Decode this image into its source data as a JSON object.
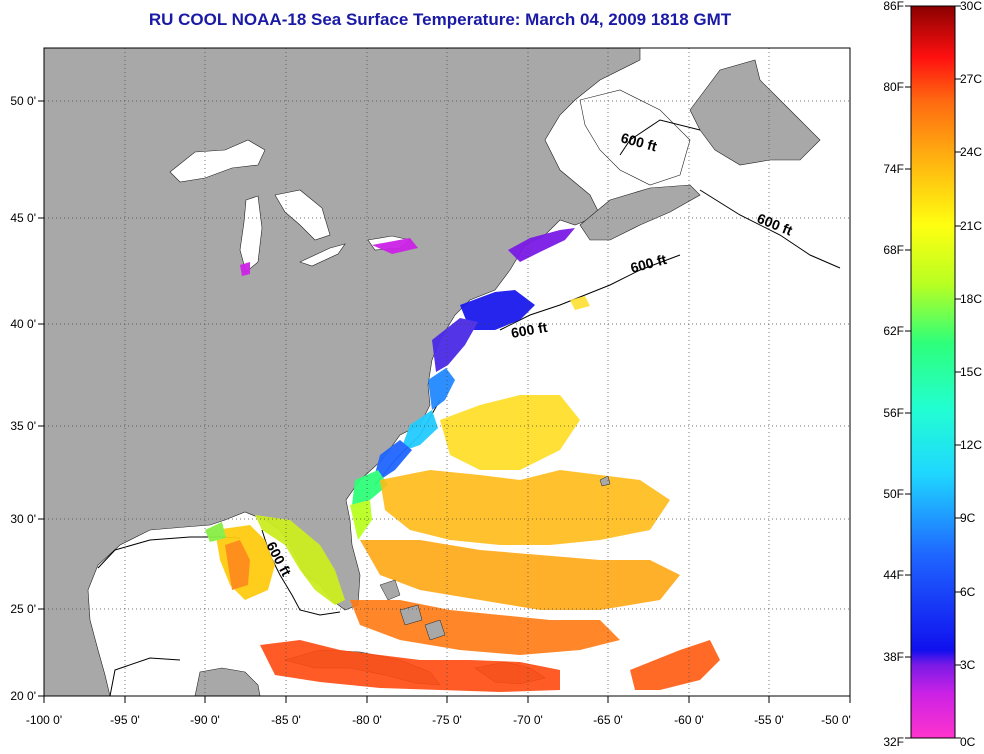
{
  "title": "RU COOL  NOAA-18  Sea Surface Temperature:  March 04, 2009 1818 GMT",
  "map": {
    "lon_ticks": [
      "-100 0'",
      "-95 0'",
      "-90 0'",
      "-85 0'",
      "-80 0'",
      "-75 0'",
      "-70 0'",
      "-65 0'",
      "-60 0'",
      "-55 0'",
      "-50 0'"
    ],
    "lat_ticks": [
      "50 0'",
      "45 0'",
      "40 0'",
      "35 0'",
      "30 0'",
      "25 0'",
      "20 0'"
    ],
    "contour_label": "600 ft",
    "colors": {
      "land": "#a8a8a8",
      "water_nodata": "#ffffff",
      "title": "#1a1aa6"
    }
  },
  "colorbar": {
    "fahrenheit_labels": [
      "86F",
      "80F",
      "74F",
      "68F",
      "62F",
      "56F",
      "50F",
      "44F",
      "38F",
      "32F"
    ],
    "celsius_labels": [
      "30C",
      "27C",
      "24C",
      "21C",
      "18C",
      "15C",
      "12C",
      "9C",
      "6C",
      "3C",
      "0C"
    ]
  }
}
